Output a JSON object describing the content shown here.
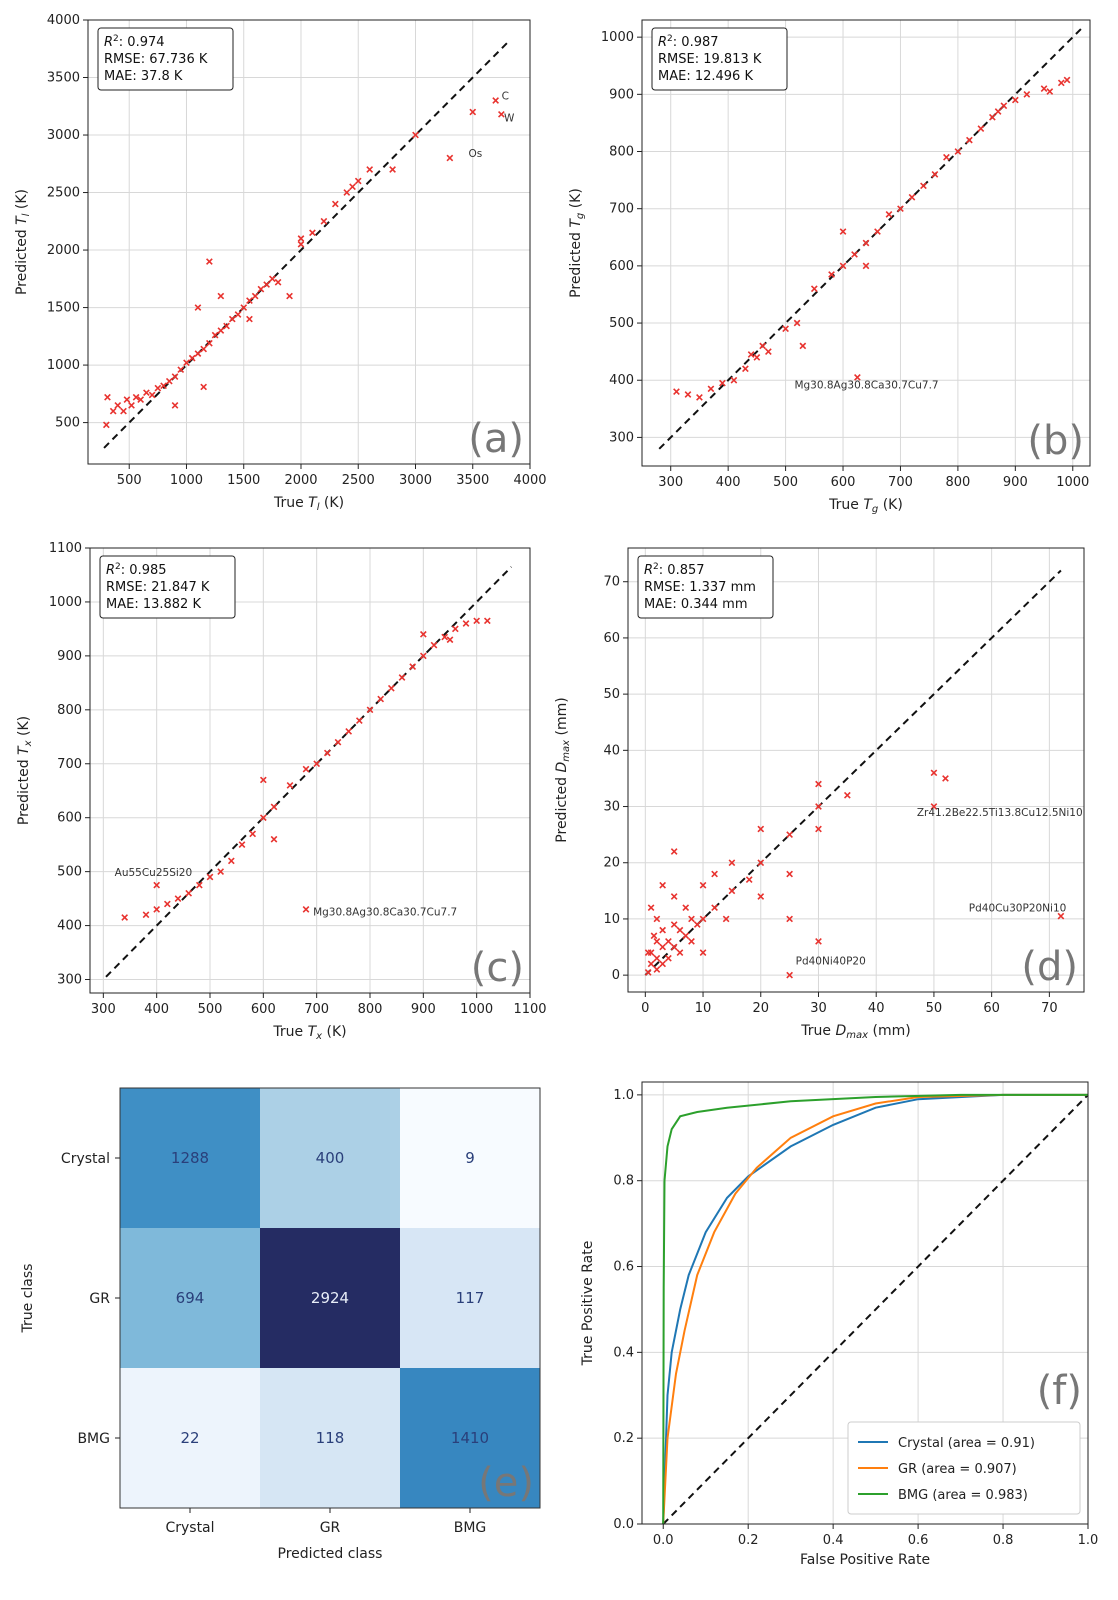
{
  "chart_data": [
    {
      "id": "a",
      "type": "scatter",
      "panel_label": "(a)",
      "xlabel": "True T_l (K)",
      "ylabel": "Predicted T_l (K)",
      "xlim": [
        140,
        4000
      ],
      "ylim": [
        140,
        4000
      ],
      "xticks": [
        500,
        1000,
        1500,
        2000,
        2500,
        3000,
        3500,
        4000
      ],
      "yticks": [
        500,
        1000,
        1500,
        2000,
        2500,
        3000,
        3500,
        4000
      ],
      "stats": [
        "R²: 0.974",
        "RMSE: 67.736 K",
        "MAE: 37.8 K"
      ],
      "identity_line": [
        [
          280,
          280
        ],
        [
          3820,
          3820
        ]
      ],
      "annotations": [
        {
          "text": "C",
          "x": 3700,
          "y": 3290
        },
        {
          "text": "W",
          "x": 3720,
          "y": 3100
        },
        {
          "text": "Os",
          "x": 3410,
          "y": 2790
        }
      ],
      "points": [
        [
          300,
          480
        ],
        [
          310,
          720
        ],
        [
          360,
          600
        ],
        [
          400,
          650
        ],
        [
          450,
          600
        ],
        [
          480,
          700
        ],
        [
          520,
          650
        ],
        [
          560,
          720
        ],
        [
          600,
          700
        ],
        [
          650,
          760
        ],
        [
          700,
          740
        ],
        [
          750,
          800
        ],
        [
          800,
          820
        ],
        [
          850,
          860
        ],
        [
          900,
          900
        ],
        [
          950,
          960
        ],
        [
          1000,
          1020
        ],
        [
          1050,
          1060
        ],
        [
          1100,
          1100
        ],
        [
          1150,
          1140
        ],
        [
          1200,
          1190
        ],
        [
          1250,
          1260
        ],
        [
          1300,
          1300
        ],
        [
          1350,
          1340
        ],
        [
          1400,
          1400
        ],
        [
          1450,
          1440
        ],
        [
          1500,
          1500
        ],
        [
          1550,
          1560
        ],
        [
          1600,
          1600
        ],
        [
          1650,
          1660
        ],
        [
          1700,
          1700
        ],
        [
          1750,
          1750
        ],
        [
          1800,
          1720
        ],
        [
          1900,
          1600
        ],
        [
          2000,
          2050
        ],
        [
          2100,
          2150
        ],
        [
          2200,
          2250
        ],
        [
          2300,
          2400
        ],
        [
          2400,
          2500
        ],
        [
          2500,
          2600
        ],
        [
          2600,
          2700
        ],
        [
          2800,
          2700
        ],
        [
          3000,
          3000
        ],
        [
          3300,
          2800
        ],
        [
          3500,
          3200
        ],
        [
          3700,
          3300
        ],
        [
          3750,
          3180
        ],
        [
          1200,
          1900
        ],
        [
          1100,
          1500
        ],
        [
          1300,
          1600
        ],
        [
          900,
          650
        ],
        [
          1150,
          810
        ],
        [
          2000,
          2100
        ],
        [
          2450,
          2550
        ],
        [
          1550,
          1400
        ]
      ]
    },
    {
      "id": "b",
      "type": "scatter",
      "panel_label": "(b)",
      "xlabel": "True T_g (K)",
      "ylabel": "Predicted T_g (K)",
      "xlim": [
        250,
        1030
      ],
      "ylim": [
        250,
        1030
      ],
      "xticks": [
        300,
        400,
        500,
        600,
        700,
        800,
        900,
        1000
      ],
      "yticks": [
        300,
        400,
        500,
        600,
        700,
        800,
        900,
        1000
      ],
      "stats": [
        "R²: 0.987",
        "RMSE: 19.813 K",
        "MAE: 12.496 K"
      ],
      "identity_line": [
        [
          280,
          280
        ],
        [
          1015,
          1015
        ]
      ],
      "annotations": [
        {
          "text": "Mg30.8Ag30.8Ca30.7Cu7.7",
          "x": 505,
          "y": 382
        }
      ],
      "points": [
        [
          310,
          380
        ],
        [
          330,
          375
        ],
        [
          350,
          370
        ],
        [
          370,
          385
        ],
        [
          390,
          395
        ],
        [
          410,
          400
        ],
        [
          430,
          420
        ],
        [
          450,
          440
        ],
        [
          470,
          450
        ],
        [
          500,
          490
        ],
        [
          520,
          500
        ],
        [
          550,
          560
        ],
        [
          580,
          585
        ],
        [
          600,
          600
        ],
        [
          620,
          620
        ],
        [
          640,
          640
        ],
        [
          660,
          660
        ],
        [
          680,
          690
        ],
        [
          700,
          700
        ],
        [
          720,
          720
        ],
        [
          740,
          740
        ],
        [
          760,
          760
        ],
        [
          780,
          790
        ],
        [
          800,
          800
        ],
        [
          820,
          820
        ],
        [
          840,
          840
        ],
        [
          860,
          860
        ],
        [
          880,
          880
        ],
        [
          900,
          890
        ],
        [
          920,
          900
        ],
        [
          950,
          910
        ],
        [
          980,
          920
        ],
        [
          990,
          925
        ],
        [
          960,
          905
        ],
        [
          870,
          870
        ],
        [
          625,
          405
        ],
        [
          530,
          460
        ],
        [
          440,
          445
        ],
        [
          460,
          460
        ],
        [
          600,
          660
        ],
        [
          640,
          600
        ]
      ]
    },
    {
      "id": "c",
      "type": "scatter",
      "panel_label": "(c)",
      "xlabel": "True T_x (K)",
      "ylabel": "Predicted T_x (K)",
      "xlim": [
        275,
        1100
      ],
      "ylim": [
        275,
        1100
      ],
      "xticks": [
        300,
        400,
        500,
        600,
        700,
        800,
        900,
        1000,
        1100
      ],
      "yticks": [
        300,
        400,
        500,
        600,
        700,
        800,
        900,
        1000,
        1100
      ],
      "stats": [
        "R²: 0.985",
        "RMSE: 21.847 K",
        "MAE: 13.882 K"
      ],
      "identity_line": [
        [
          305,
          305
        ],
        [
          1065,
          1065
        ]
      ],
      "annotations": [
        {
          "text": "Au55Cu25Si20",
          "x": 310,
          "y": 488
        },
        {
          "text": "Mg30.8Ag30.8Ca30.7Cu7.7",
          "x": 682,
          "y": 415
        }
      ],
      "points": [
        [
          340,
          415
        ],
        [
          380,
          420
        ],
        [
          400,
          430
        ],
        [
          420,
          440
        ],
        [
          440,
          450
        ],
        [
          460,
          460
        ],
        [
          480,
          475
        ],
        [
          500,
          490
        ],
        [
          520,
          500
        ],
        [
          540,
          520
        ],
        [
          560,
          550
        ],
        [
          580,
          570
        ],
        [
          600,
          600
        ],
        [
          620,
          620
        ],
        [
          650,
          660
        ],
        [
          680,
          690
        ],
        [
          700,
          700
        ],
        [
          720,
          720
        ],
        [
          740,
          740
        ],
        [
          760,
          760
        ],
        [
          780,
          780
        ],
        [
          800,
          800
        ],
        [
          820,
          820
        ],
        [
          840,
          840
        ],
        [
          860,
          860
        ],
        [
          880,
          880
        ],
        [
          900,
          900
        ],
        [
          920,
          920
        ],
        [
          940,
          935
        ],
        [
          960,
          950
        ],
        [
          980,
          960
        ],
        [
          1000,
          965
        ],
        [
          1020,
          965
        ],
        [
          680,
          430
        ],
        [
          400,
          475
        ],
        [
          620,
          560
        ],
        [
          600,
          670
        ],
        [
          900,
          940
        ],
        [
          950,
          930
        ]
      ]
    },
    {
      "id": "d",
      "type": "scatter",
      "panel_label": "(d)",
      "xlabel": "True D_max (mm)",
      "ylabel": "Predicted D_max (mm)",
      "xlim": [
        -3,
        76
      ],
      "ylim": [
        -3,
        76
      ],
      "xticks": [
        0,
        10,
        20,
        30,
        40,
        50,
        60,
        70
      ],
      "yticks": [
        0,
        10,
        20,
        30,
        40,
        50,
        60,
        70
      ],
      "stats": [
        "R²: 0.857",
        "RMSE: 1.337 mm",
        "MAE: 0.344 mm"
      ],
      "identity_line": [
        [
          0,
          0
        ],
        [
          72,
          72
        ]
      ],
      "annotations": [
        {
          "text": "Zr41.2Be22.5Ti13.8Cu12.5Ni10",
          "x": 46,
          "y": 28
        },
        {
          "text": "Pd40Cu30P20Ni10",
          "x": 55,
          "y": 11
        },
        {
          "text": "Pd40Ni40P20",
          "x": 25,
          "y": 1.5
        }
      ],
      "points": [
        [
          0.5,
          0.5
        ],
        [
          1,
          2
        ],
        [
          1,
          4
        ],
        [
          2,
          1
        ],
        [
          2,
          3
        ],
        [
          2,
          6
        ],
        [
          3,
          2
        ],
        [
          3,
          5
        ],
        [
          3,
          8
        ],
        [
          4,
          3
        ],
        [
          4,
          6
        ],
        [
          5,
          5
        ],
        [
          5,
          9
        ],
        [
          5,
          14
        ],
        [
          6,
          4
        ],
        [
          6,
          8
        ],
        [
          7,
          7
        ],
        [
          7,
          12
        ],
        [
          8,
          6
        ],
        [
          8,
          10
        ],
        [
          9,
          9
        ],
        [
          10,
          10
        ],
        [
          10,
          4
        ],
        [
          10,
          16
        ],
        [
          12,
          12
        ],
        [
          12,
          18
        ],
        [
          14,
          10
        ],
        [
          15,
          15
        ],
        [
          15,
          20
        ],
        [
          18,
          17
        ],
        [
          20,
          20
        ],
        [
          20,
          14
        ],
        [
          20,
          26
        ],
        [
          25,
          25
        ],
        [
          25,
          18
        ],
        [
          25,
          10
        ],
        [
          25,
          0
        ],
        [
          30,
          34
        ],
        [
          30,
          30
        ],
        [
          30,
          26
        ],
        [
          30,
          6
        ],
        [
          35,
          32
        ],
        [
          50,
          36
        ],
        [
          50,
          30
        ],
        [
          52,
          35
        ],
        [
          72,
          10.5
        ],
        [
          3,
          16
        ],
        [
          5,
          22
        ],
        [
          1,
          12
        ],
        [
          2,
          10
        ],
        [
          0.5,
          4
        ],
        [
          1.5,
          7
        ]
      ]
    },
    {
      "id": "e",
      "type": "heatmap",
      "panel_label": "(e)",
      "xlabel": "Predicted class",
      "ylabel": "True class",
      "categories": [
        "Crystal",
        "GR",
        "BMG"
      ],
      "matrix": [
        [
          1288,
          400,
          9
        ],
        [
          694,
          2924,
          117
        ],
        [
          22,
          118,
          1410
        ]
      ]
    },
    {
      "id": "f",
      "type": "line",
      "panel_label": "(f)",
      "xlabel": "False Positive Rate",
      "ylabel": "True Positive Rate",
      "xlim": [
        -0.05,
        1.0
      ],
      "ylim": [
        0.0,
        1.03
      ],
      "xticks": [
        0.0,
        0.2,
        0.4,
        0.6,
        0.8,
        1.0
      ],
      "xtick_labels": [
        "0.0",
        "0.2",
        "0.4",
        "0.6",
        "0.8",
        "1.0"
      ],
      "yticks": [
        0.0,
        0.2,
        0.4,
        0.6,
        0.8,
        1.0
      ],
      "ytick_labels": [
        "0.0",
        "0.2",
        "0.4",
        "0.6",
        "0.8",
        "1.0"
      ],
      "chance_line": [
        [
          0,
          0
        ],
        [
          1,
          1
        ]
      ],
      "series": [
        {
          "name": "Crystal (area = 0.91)",
          "color": "#1f77b4",
          "points": [
            [
              0,
              0
            ],
            [
              0.01,
              0.3
            ],
            [
              0.02,
              0.4
            ],
            [
              0.04,
              0.5
            ],
            [
              0.06,
              0.58
            ],
            [
              0.1,
              0.68
            ],
            [
              0.15,
              0.76
            ],
            [
              0.2,
              0.81
            ],
            [
              0.3,
              0.88
            ],
            [
              0.4,
              0.93
            ],
            [
              0.5,
              0.97
            ],
            [
              0.6,
              0.99
            ],
            [
              0.8,
              1.0
            ],
            [
              1.0,
              1.0
            ]
          ]
        },
        {
          "name": "GR (area = 0.907)",
          "color": "#ff7f0e",
          "points": [
            [
              0,
              0
            ],
            [
              0.01,
              0.2
            ],
            [
              0.03,
              0.35
            ],
            [
              0.05,
              0.45
            ],
            [
              0.08,
              0.58
            ],
            [
              0.12,
              0.68
            ],
            [
              0.17,
              0.77
            ],
            [
              0.22,
              0.83
            ],
            [
              0.3,
              0.9
            ],
            [
              0.4,
              0.95
            ],
            [
              0.5,
              0.98
            ],
            [
              0.6,
              0.995
            ],
            [
              0.8,
              1.0
            ],
            [
              1.0,
              1.0
            ]
          ]
        },
        {
          "name": "BMG (area = 0.983)",
          "color": "#2ca02c",
          "points": [
            [
              0,
              0
            ],
            [
              0.001,
              0.55
            ],
            [
              0.003,
              0.8
            ],
            [
              0.01,
              0.88
            ],
            [
              0.02,
              0.92
            ],
            [
              0.04,
              0.95
            ],
            [
              0.08,
              0.96
            ],
            [
              0.15,
              0.97
            ],
            [
              0.3,
              0.985
            ],
            [
              0.5,
              0.995
            ],
            [
              0.7,
              1.0
            ],
            [
              1.0,
              1.0
            ]
          ]
        }
      ]
    }
  ]
}
